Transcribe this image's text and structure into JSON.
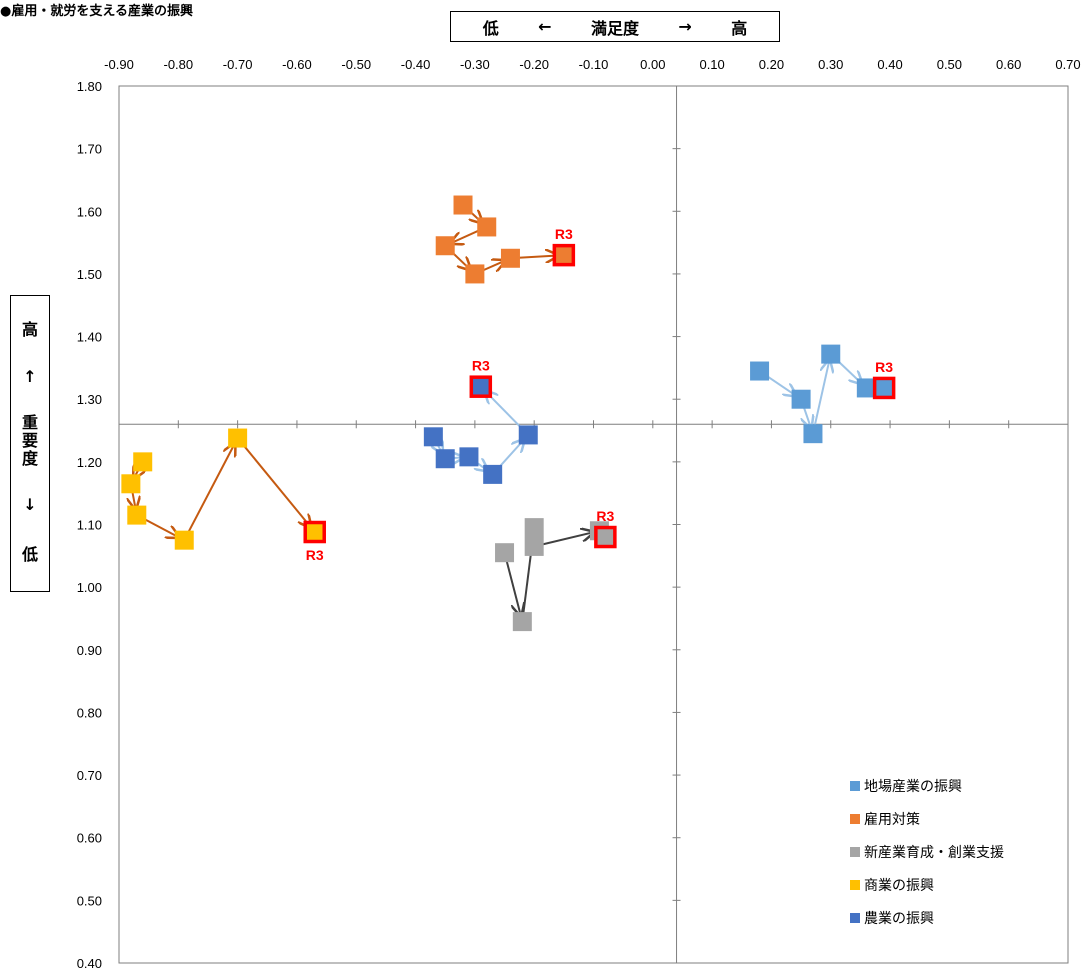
{
  "page_title": "●雇用・就労を支える産業の振興",
  "x_axis_box": {
    "low": "低",
    "left_arrow": "←",
    "label": "満足度",
    "right_arrow": "→",
    "high": "高"
  },
  "y_axis_box": {
    "high": "高",
    "up_arrow": "↑",
    "label": "重要度",
    "down_arrow": "↓",
    "low": "低"
  },
  "chart_data": {
    "type": "scatter",
    "xlim": [
      -0.9,
      0.7
    ],
    "ylim": [
      0.4,
      1.8
    ],
    "x_ticks": [
      "-0.90",
      "-0.80",
      "-0.70",
      "-0.60",
      "-0.50",
      "-0.40",
      "-0.30",
      "-0.20",
      "-0.10",
      "0.00",
      "0.10",
      "0.20",
      "0.30",
      "0.40",
      "0.50",
      "0.60",
      "0.70"
    ],
    "y_ticks": [
      "1.80",
      "1.70",
      "1.60",
      "1.50",
      "1.40",
      "1.30",
      "1.20",
      "1.10",
      "1.00",
      "0.90",
      "0.80",
      "0.70",
      "0.60",
      "0.50",
      "0.40"
    ],
    "x_crossing": 0.04,
    "y_crossing": 1.26,
    "latest_label": "R3",
    "series": [
      {
        "name": "地場産業の振興",
        "color": "#5B9BD5",
        "arrow_color": "#9DC3E6",
        "points": [
          [
            0.18,
            1.345
          ],
          [
            0.25,
            1.3
          ],
          [
            0.27,
            1.245
          ],
          [
            0.3,
            1.372
          ],
          [
            0.36,
            1.318
          ],
          [
            0.39,
            1.318
          ]
        ]
      },
      {
        "name": "雇用対策",
        "color": "#ED7D31",
        "arrow_color": "#C55A11",
        "points": [
          [
            -0.32,
            1.61
          ],
          [
            -0.28,
            1.575
          ],
          [
            -0.35,
            1.545
          ],
          [
            -0.3,
            1.5
          ],
          [
            -0.24,
            1.525
          ],
          [
            -0.15,
            1.53
          ]
        ]
      },
      {
        "name": "新産業育成・創業支援",
        "color": "#A5A5A5",
        "arrow_color": "#404040",
        "points": [
          [
            -0.25,
            1.055
          ],
          [
            -0.22,
            0.945
          ],
          [
            -0.2,
            1.095
          ],
          [
            -0.2,
            1.065
          ],
          [
            -0.09,
            1.09
          ],
          [
            -0.08,
            1.08
          ]
        ]
      },
      {
        "name": "商業の振興",
        "color": "#FFC000",
        "arrow_color": "#C55A11",
        "points": [
          [
            -0.86,
            1.2
          ],
          [
            -0.88,
            1.165
          ],
          [
            -0.87,
            1.115
          ],
          [
            -0.79,
            1.075
          ],
          [
            -0.7,
            1.238
          ],
          [
            -0.57,
            1.088
          ]
        ]
      },
      {
        "name": "農業の振興",
        "color": "#4472C4",
        "arrow_color": "#9DC3E6",
        "points": [
          [
            -0.37,
            1.24
          ],
          [
            -0.35,
            1.205
          ],
          [
            -0.31,
            1.208
          ],
          [
            -0.27,
            1.18
          ],
          [
            -0.21,
            1.243
          ],
          [
            -0.29,
            1.32
          ]
        ]
      }
    ]
  }
}
